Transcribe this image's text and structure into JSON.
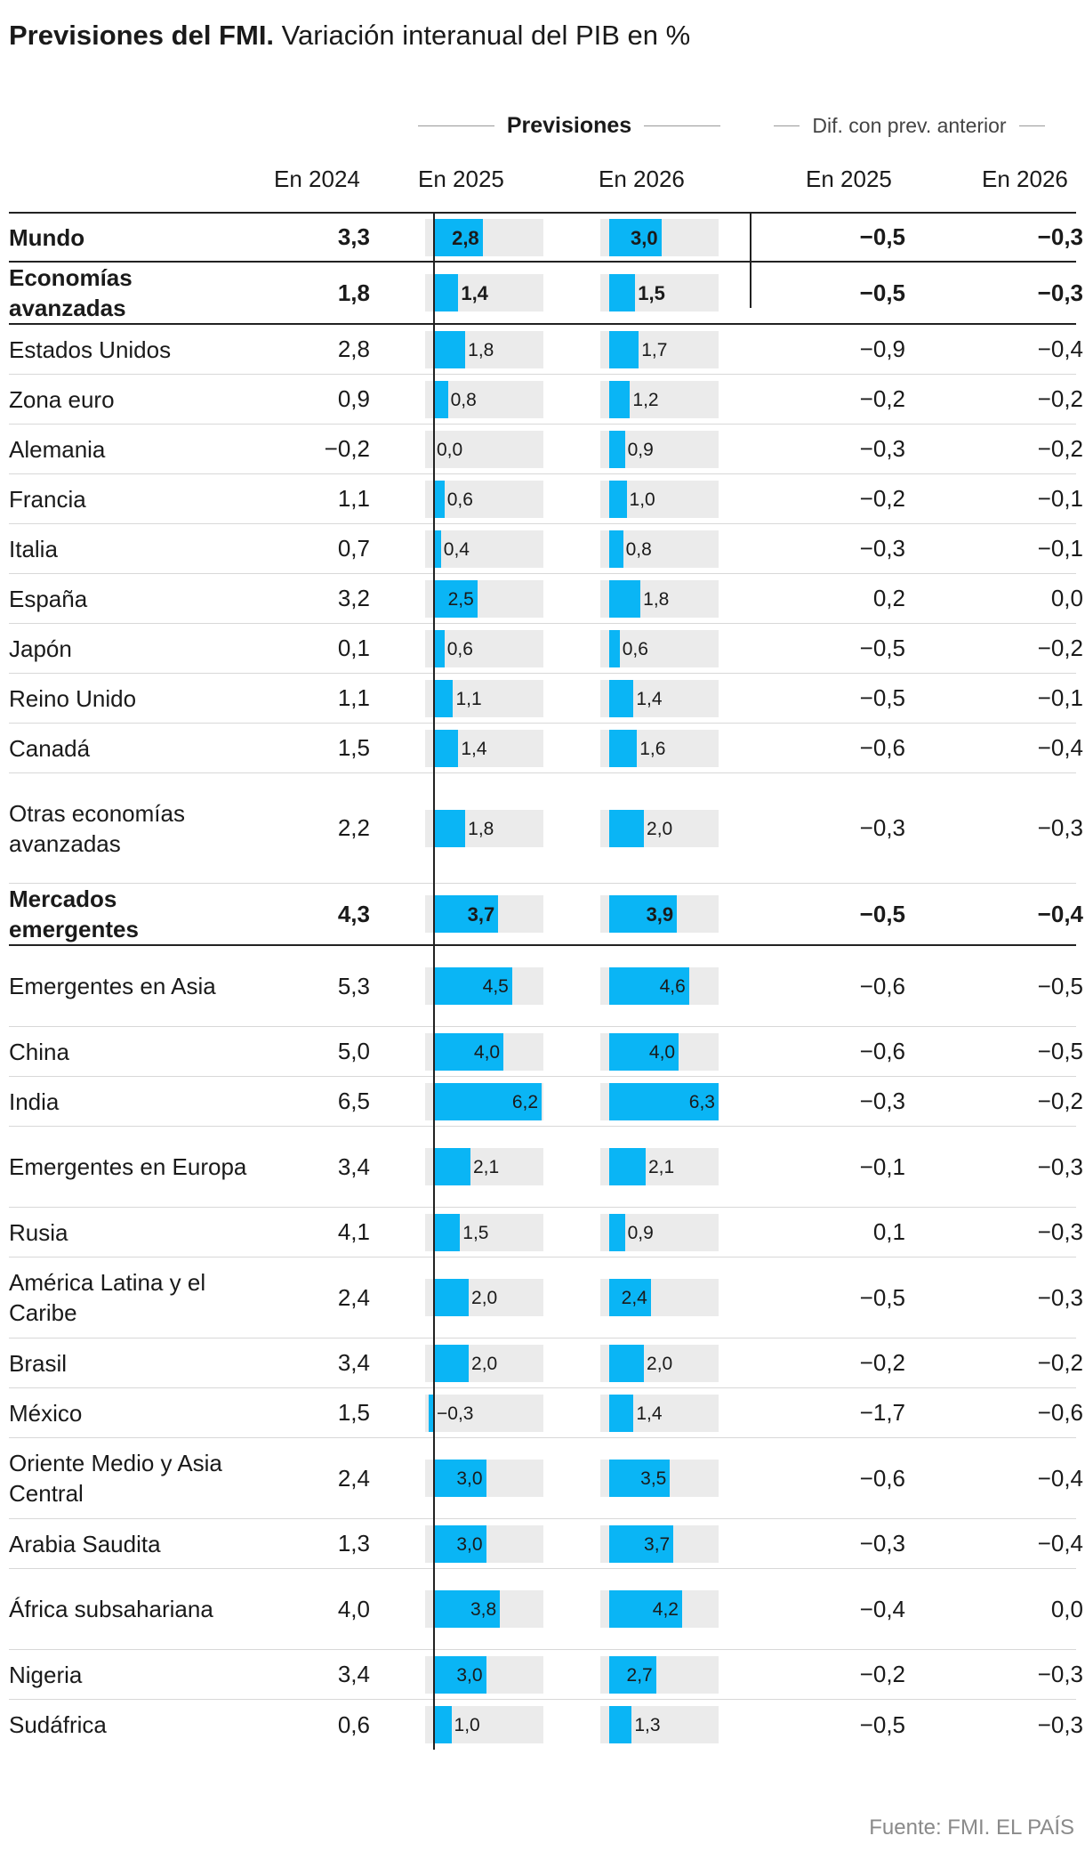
{
  "title": {
    "bold": "Previsiones del FMI.",
    "rest": "Variación interanual del PIB en %"
  },
  "header": {
    "group_previsiones": "Previsiones",
    "group_dif": "Dif. con prev. anterior",
    "col_2024": "En 2024",
    "col_2025": "En 2025",
    "col_2026": "En 2026",
    "col_dif_2025": "En 2025",
    "col_dif_2026": "En 2026"
  },
  "chart_data": {
    "type": "table",
    "title": "Previsiones del FMI. Variación interanual del PIB en %",
    "columns": [
      "En 2024",
      "Previsiones En 2025",
      "Previsiones En 2026",
      "Dif. con prev. anterior En 2025",
      "Dif. con prev. anterior En 2026"
    ],
    "bar_scale_max": 6.3,
    "rows": [
      {
        "name": "Mundo",
        "v2024": "3,3",
        "v2025": 2.8,
        "l2025": "2,8",
        "v2026": 3.0,
        "l2026": "3,0",
        "d2025": "−0,5",
        "d2026": "−0,3",
        "bold": true
      },
      {
        "name": "Economías avanzadas",
        "v2024": "1,8",
        "v2025": 1.4,
        "l2025": "1,4",
        "v2026": 1.5,
        "l2026": "1,5",
        "d2025": "−0,5",
        "d2026": "−0,3",
        "bold": true
      },
      {
        "name": "Estados Unidos",
        "v2024": "2,8",
        "v2025": 1.8,
        "l2025": "1,8",
        "v2026": 1.7,
        "l2026": "1,7",
        "d2025": "−0,9",
        "d2026": "−0,4"
      },
      {
        "name": "Zona euro",
        "v2024": "0,9",
        "v2025": 0.8,
        "l2025": "0,8",
        "v2026": 1.2,
        "l2026": "1,2",
        "d2025": "−0,2",
        "d2026": "−0,2"
      },
      {
        "name": "Alemania",
        "v2024": "−0,2",
        "v2025": 0.0,
        "l2025": "0,0",
        "v2026": 0.9,
        "l2026": "0,9",
        "d2025": "−0,3",
        "d2026": "−0,2"
      },
      {
        "name": "Francia",
        "v2024": "1,1",
        "v2025": 0.6,
        "l2025": "0,6",
        "v2026": 1.0,
        "l2026": "1,0",
        "d2025": "−0,2",
        "d2026": "−0,1"
      },
      {
        "name": "Italia",
        "v2024": "0,7",
        "v2025": 0.4,
        "l2025": "0,4",
        "v2026": 0.8,
        "l2026": "0,8",
        "d2025": "−0,3",
        "d2026": "−0,1"
      },
      {
        "name": "España",
        "v2024": "3,2",
        "v2025": 2.5,
        "l2025": "2,5",
        "v2026": 1.8,
        "l2026": "1,8",
        "d2025": "0,2",
        "d2026": "0,0"
      },
      {
        "name": "Japón",
        "v2024": "0,1",
        "v2025": 0.6,
        "l2025": "0,6",
        "v2026": 0.6,
        "l2026": "0,6",
        "d2025": "−0,5",
        "d2026": "−0,2"
      },
      {
        "name": "Reino Unido",
        "v2024": "1,1",
        "v2025": 1.1,
        "l2025": "1,1",
        "v2026": 1.4,
        "l2026": "1,4",
        "d2025": "−0,5",
        "d2026": "−0,1"
      },
      {
        "name": "Canadá",
        "v2024": "1,5",
        "v2025": 1.4,
        "l2025": "1,4",
        "v2026": 1.6,
        "l2026": "1,6",
        "d2025": "−0,6",
        "d2026": "−0,4"
      },
      {
        "name": "Otras economías avanzadas",
        "v2024": "2,2",
        "v2025": 1.8,
        "l2025": "1,8",
        "v2026": 2.0,
        "l2026": "2,0",
        "d2025": "−0,3",
        "d2026": "−0,3"
      },
      {
        "name": "Mercados emergentes",
        "v2024": "4,3",
        "v2025": 3.7,
        "l2025": "3,7",
        "v2026": 3.9,
        "l2026": "3,9",
        "d2025": "−0,5",
        "d2026": "−0,4",
        "bold": true
      },
      {
        "name": "Emergentes en Asia",
        "v2024": "5,3",
        "v2025": 4.5,
        "l2025": "4,5",
        "v2026": 4.6,
        "l2026": "4,6",
        "d2025": "−0,6",
        "d2026": "−0,5"
      },
      {
        "name": "China",
        "v2024": "5,0",
        "v2025": 4.0,
        "l2025": "4,0",
        "v2026": 4.0,
        "l2026": "4,0",
        "d2025": "−0,6",
        "d2026": "−0,5"
      },
      {
        "name": "India",
        "v2024": "6,5",
        "v2025": 6.2,
        "l2025": "6,2",
        "v2026": 6.3,
        "l2026": "6,3",
        "d2025": "−0,3",
        "d2026": "−0,2"
      },
      {
        "name": "Emergentes en Europa",
        "v2024": "3,4",
        "v2025": 2.1,
        "l2025": "2,1",
        "v2026": 2.1,
        "l2026": "2,1",
        "d2025": "−0,1",
        "d2026": "−0,3"
      },
      {
        "name": "Rusia",
        "v2024": "4,1",
        "v2025": 1.5,
        "l2025": "1,5",
        "v2026": 0.9,
        "l2026": "0,9",
        "d2025": "0,1",
        "d2026": "−0,3"
      },
      {
        "name": "América Latina y el Caribe",
        "v2024": "2,4",
        "v2025": 2.0,
        "l2025": "2,0",
        "v2026": 2.4,
        "l2026": "2,4",
        "d2025": "−0,5",
        "d2026": "−0,3"
      },
      {
        "name": "Brasil",
        "v2024": "3,4",
        "v2025": 2.0,
        "l2025": "2,0",
        "v2026": 2.0,
        "l2026": "2,0",
        "d2025": "−0,2",
        "d2026": "−0,2"
      },
      {
        "name": "México",
        "v2024": "1,5",
        "v2025": -0.3,
        "l2025": "−0,3",
        "v2026": 1.4,
        "l2026": "1,4",
        "d2025": "−1,7",
        "d2026": "−0,6"
      },
      {
        "name": "Oriente Medio y Asia Central",
        "v2024": "2,4",
        "v2025": 3.0,
        "l2025": "3,0",
        "v2026": 3.5,
        "l2026": "3,5",
        "d2025": "−0,6",
        "d2026": "−0,4"
      },
      {
        "name": "Arabia Saudita",
        "v2024": "1,3",
        "v2025": 3.0,
        "l2025": "3,0",
        "v2026": 3.7,
        "l2026": "3,7",
        "d2025": "−0,3",
        "d2026": "−0,4"
      },
      {
        "name": "África subsahariana",
        "v2024": "4,0",
        "v2025": 3.8,
        "l2025": "3,8",
        "v2026": 4.2,
        "l2026": "4,2",
        "d2025": "−0,4",
        "d2026": "0,0"
      },
      {
        "name": "Nigeria",
        "v2024": "3,4",
        "v2025": 3.0,
        "l2025": "3,0",
        "v2026": 2.7,
        "l2026": "2,7",
        "d2025": "−0,2",
        "d2026": "−0,3"
      },
      {
        "name": "Sudáfrica",
        "v2024": "0,6",
        "v2025": 1.0,
        "l2025": "1,0",
        "v2026": 1.3,
        "l2026": "1,3",
        "d2025": "−0,5",
        "d2026": "−0,3"
      }
    ]
  },
  "source": "Fuente: FMI. EL PAÍS"
}
